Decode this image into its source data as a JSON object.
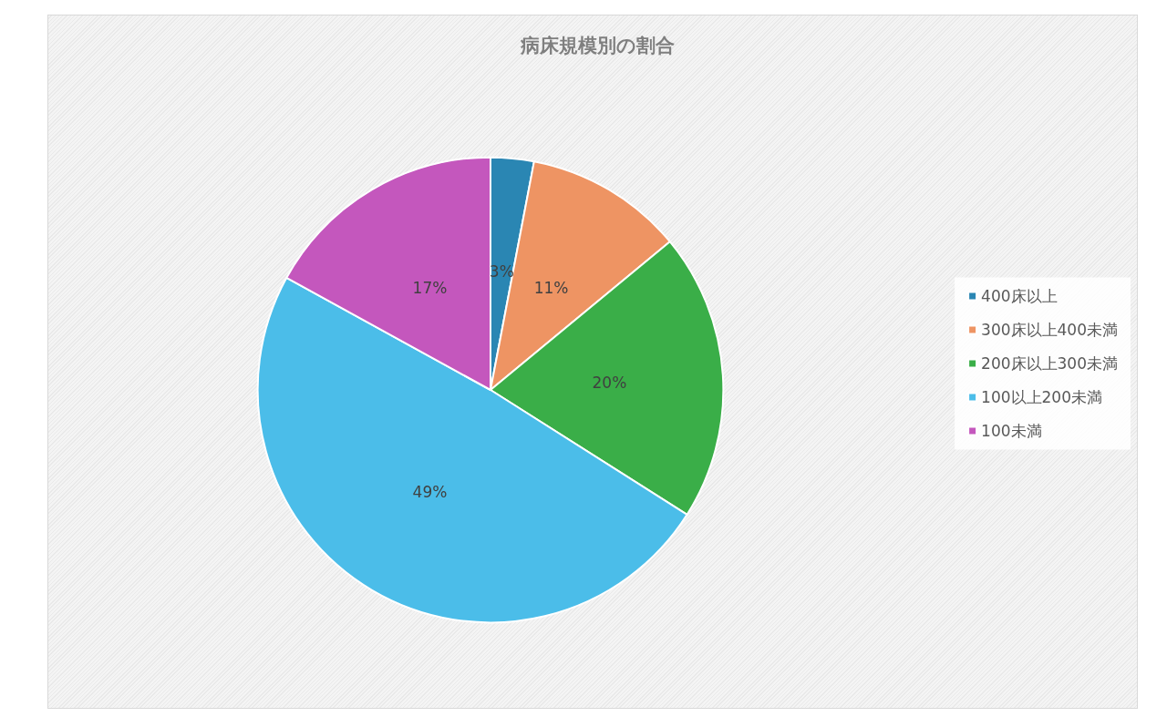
{
  "chart_data": {
    "type": "pie",
    "title": "病床規模別の割合",
    "categories": [
      "400床以上",
      "300床以上400未満",
      "200床以上300未満",
      "100以上200未満",
      "100未満"
    ],
    "values": [
      3,
      11,
      20,
      49,
      17
    ],
    "colors": [
      "#2a86b3",
      "#ee9463",
      "#3aae48",
      "#4bbde9",
      "#c457bd"
    ],
    "value_labels": [
      "3%",
      "11%",
      "20%",
      "49%",
      "17%"
    ],
    "legend": "right"
  }
}
